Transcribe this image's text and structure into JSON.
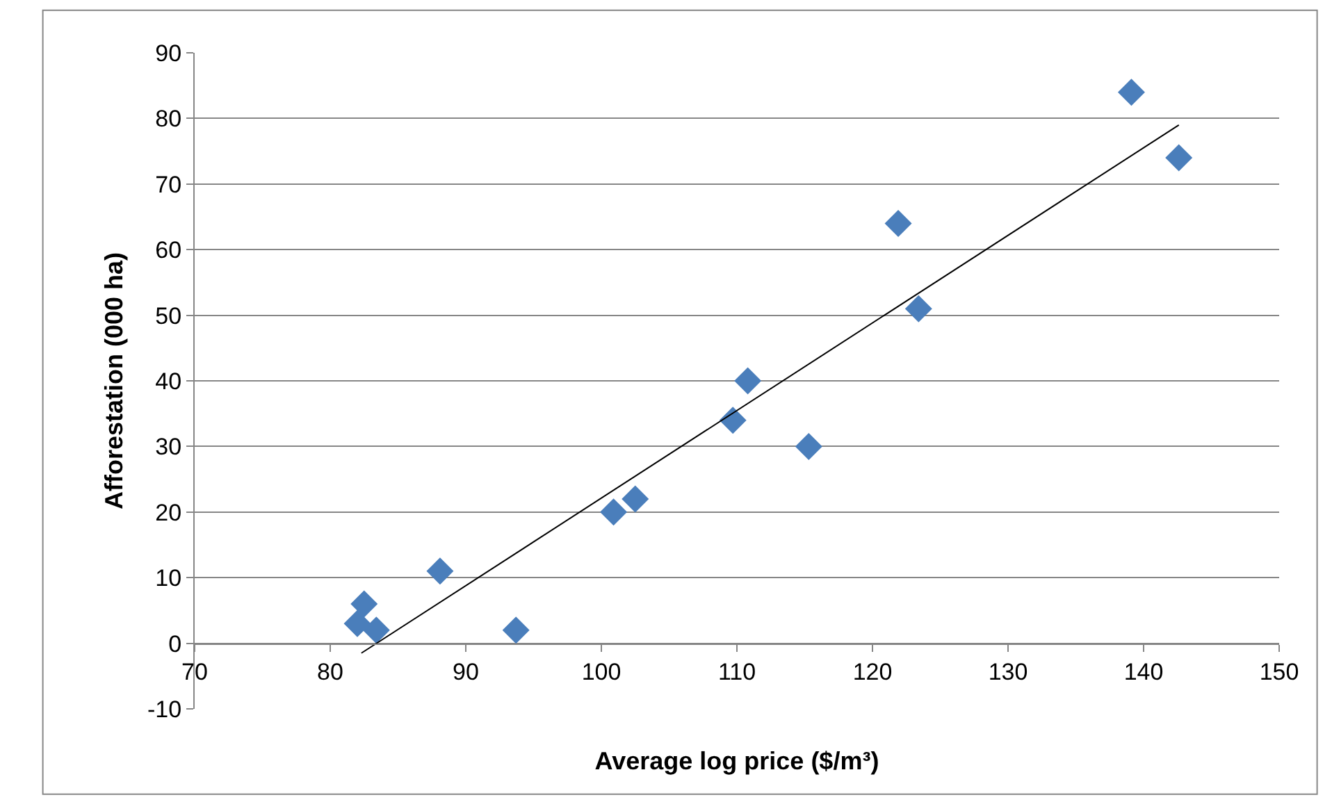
{
  "chart_data": {
    "type": "scatter",
    "xlabel": "Average log price ($/m³)",
    "ylabel": "Afforestation (000 ha)",
    "xlim": [
      70,
      150
    ],
    "xticks": [
      70,
      80,
      90,
      100,
      110,
      120,
      130,
      140,
      150
    ],
    "ylim": [
      -10,
      90
    ],
    "yticks": [
      -10,
      0,
      10,
      20,
      30,
      40,
      50,
      60,
      70,
      80,
      90
    ],
    "grid": "y",
    "marker": "diamond",
    "series": [
      {
        "color": "#4a7ebb",
        "x": [
          82.0,
          82.5,
          83.4,
          88.1,
          93.7,
          100.9,
          102.5,
          109.7,
          110.8,
          115.3,
          121.9,
          123.4,
          139.1,
          142.6
        ],
        "values": [
          3,
          6,
          2,
          11,
          2,
          20,
          22,
          34,
          40,
          30,
          64,
          51,
          84,
          74
        ]
      },
      {
        "type": "line",
        "color": "#000000",
        "line_style": "solid",
        "marker": "none",
        "x": [
          82.3,
          142.6
        ],
        "values": [
          -1.5,
          79
        ]
      }
    ]
  }
}
